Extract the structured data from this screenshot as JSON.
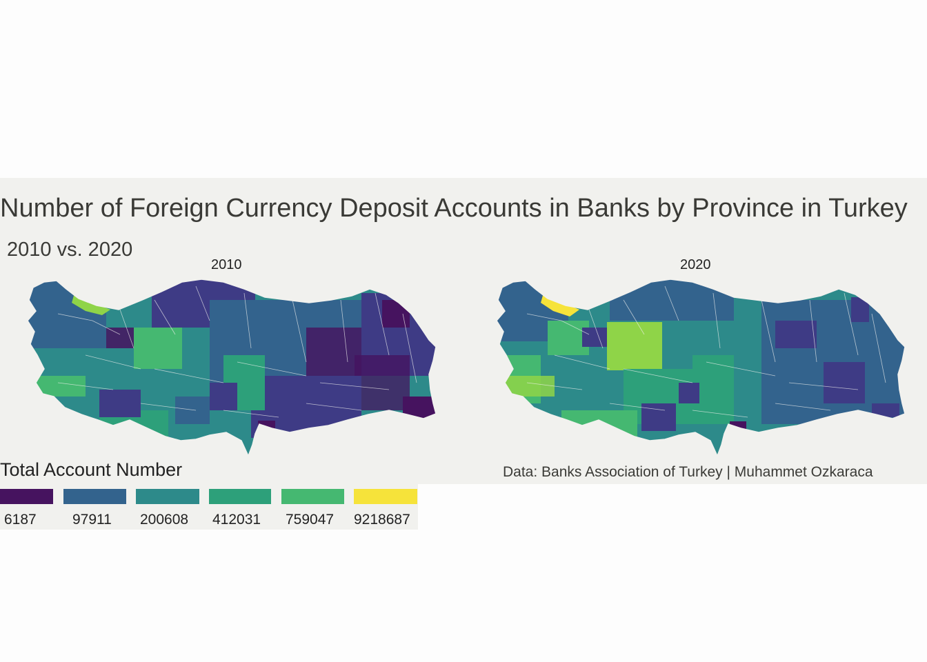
{
  "title": "Number of Foreign Currency Deposit Accounts in Banks by Province in Turkey",
  "subtitle": "2010 vs. 2020",
  "facets": [
    {
      "label": "2010"
    },
    {
      "label": "2020"
    }
  ],
  "caption": "Data: Banks Association of Turkey | Muhammet Ozkaraca",
  "legend": {
    "title": "Total Account Number",
    "bins": [
      {
        "label": "6187",
        "color": "#46135f"
      },
      {
        "label": "97911",
        "color": "#33638d"
      },
      {
        "label": "200608",
        "color": "#2d8a8a"
      },
      {
        "label": "412031",
        "color": "#2da07a"
      },
      {
        "label": "759047",
        "color": "#45b871"
      },
      {
        "label": "9218687",
        "color": "#f6e33a"
      }
    ]
  },
  "palette": [
    "#46135f",
    "#3e3b85",
    "#33638d",
    "#2d8a8a",
    "#2da07a",
    "#45b871",
    "#8fd448",
    "#f6e33a"
  ]
}
